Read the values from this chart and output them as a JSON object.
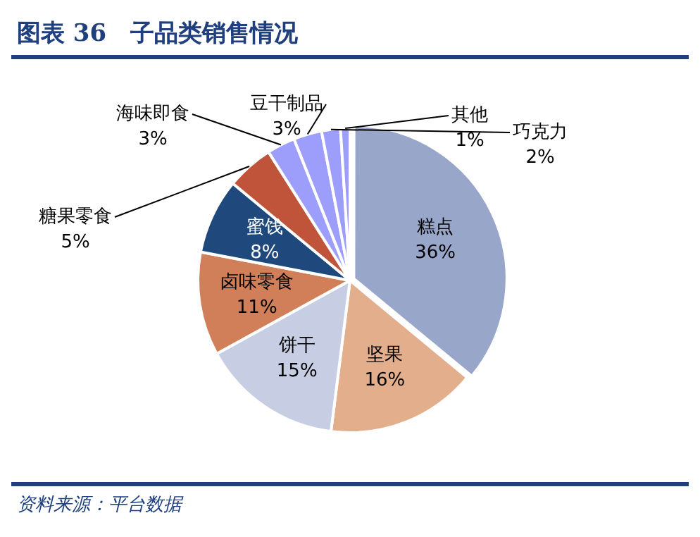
{
  "chart_data": {
    "type": "pie",
    "title": "图表 36　子品类销售情况",
    "categories": [
      "糕点",
      "坚果",
      "饼干",
      "卤味零食",
      "蜜饯",
      "糖果零食",
      "海味即食",
      "豆干制品",
      "巧克力",
      "其他"
    ],
    "values": [
      36,
      16,
      15,
      11,
      8,
      5,
      3,
      3,
      2,
      1
    ],
    "colors": [
      "#97a6c9",
      "#e2ae8c",
      "#c7cde3",
      "#d17f59",
      "#1f497d",
      "#c0543a",
      "#9d9dfb",
      "#9d9dfb",
      "#9d9dfb",
      "#9d9dfb"
    ],
    "value_labels": [
      "36%",
      "16%",
      "15%",
      "11%",
      "8%",
      "5%",
      "3%",
      "3%",
      "2%",
      "1%"
    ],
    "legend": false,
    "annotations": [
      "资料来源：平台数据"
    ]
  }
}
